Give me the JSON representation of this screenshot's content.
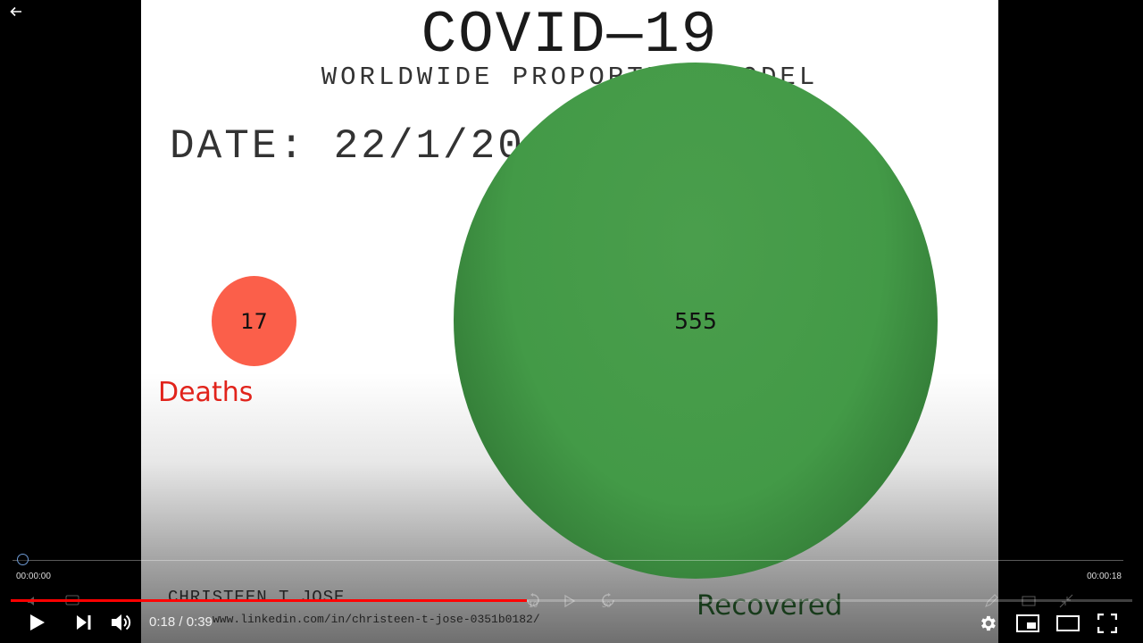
{
  "slide": {
    "title": "COVID—19",
    "subtitle": "WORLDWIDE PROPORTION MODEL",
    "date": "DATE: 22/1/20",
    "deaths": {
      "value": "17",
      "label": "Deaths",
      "color": "#fb5f4a"
    },
    "recovered": {
      "value": "555",
      "label": "Recovered",
      "color": "#439a47"
    },
    "author": "CHRISTEEN T JOSE",
    "link": "www.linkedin.com/in/christeen-t-jose-0351b0182/"
  },
  "player": {
    "back_icon": "arrow-left-icon",
    "scrubber": {
      "start_time": "00:00:00",
      "end_time": "00:00:18"
    },
    "timecode": "0:18 / 0:39",
    "progress_fraction": 0.46,
    "progress_color": "#ff0000",
    "ghost_icons": [
      "rewind-10-icon",
      "play-small-icon",
      "forward-30-icon"
    ],
    "ghost_labels": {
      "rewind": "10",
      "forward": "30"
    },
    "controls": [
      "play-icon",
      "next-icon",
      "volume-icon",
      "settings-icon",
      "miniplayer-icon",
      "theater-icon",
      "fullscreen-icon"
    ]
  }
}
